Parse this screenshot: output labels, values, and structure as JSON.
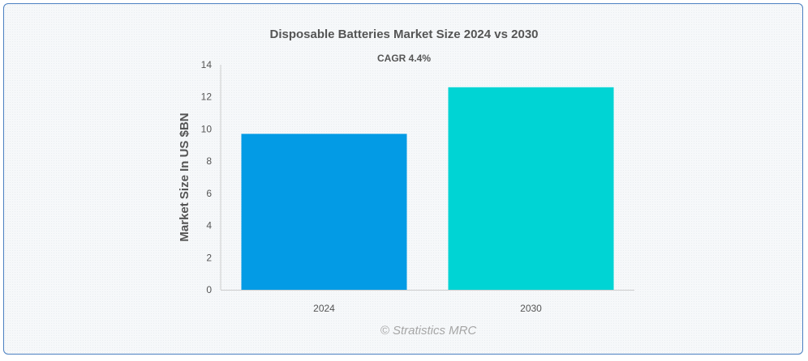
{
  "chart_data": {
    "type": "bar",
    "title": "Disposable Batteries Market Size 2024 vs 2030",
    "subtitle": "CAGR 4.4%",
    "categories": [
      "2024",
      "2030"
    ],
    "values": [
      9.7,
      12.6
    ],
    "colors": [
      "#039be5",
      "#00d4d4"
    ],
    "xlabel": "",
    "ylabel": "Market Size In US $BN",
    "ylim": [
      0,
      14
    ],
    "yticks": [
      0,
      2,
      4,
      6,
      8,
      10,
      12,
      14
    ],
    "grid": false,
    "legend": "none"
  },
  "credit": "© Stratistics MRC"
}
